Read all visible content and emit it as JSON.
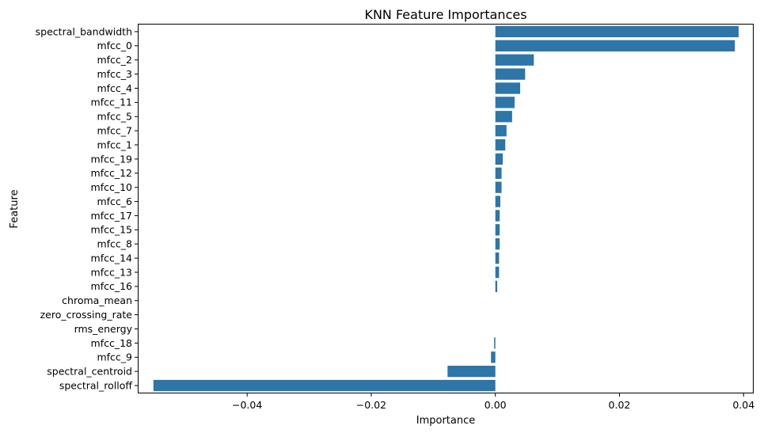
{
  "chart_data": {
    "type": "bar",
    "orientation": "horizontal",
    "title": "KNN Feature Importances",
    "xlabel": "Importance",
    "ylabel": "Feature",
    "xlim": [
      -0.0575,
      0.0415
    ],
    "xticks": [
      -0.04,
      -0.02,
      0.0,
      0.02,
      0.04
    ],
    "xtick_labels": [
      "−0.04",
      "−0.02",
      "0.00",
      "0.02",
      "0.04"
    ],
    "grid": false,
    "legend": "none",
    "bar_color": "#2e75a8",
    "categories": [
      "spectral_bandwidth",
      "mfcc_0",
      "mfcc_2",
      "mfcc_3",
      "mfcc_4",
      "mfcc_11",
      "mfcc_5",
      "mfcc_7",
      "mfcc_1",
      "mfcc_19",
      "mfcc_12",
      "mfcc_10",
      "mfcc_6",
      "mfcc_17",
      "mfcc_15",
      "mfcc_8",
      "mfcc_14",
      "mfcc_13",
      "mfcc_16",
      "chroma_mean",
      "zero_crossing_rate",
      "rms_energy",
      "mfcc_18",
      "mfcc_9",
      "spectral_centroid",
      "spectral_rolloff"
    ],
    "values": [
      0.0392,
      0.0386,
      0.0062,
      0.0048,
      0.004,
      0.0031,
      0.0027,
      0.0018,
      0.0016,
      0.0012,
      0.001,
      0.001,
      0.0008,
      0.0007,
      0.0007,
      0.0007,
      0.0006,
      0.0006,
      0.0003,
      0.0,
      0.0,
      0.0,
      -0.0002,
      -0.0007,
      -0.0077,
      -0.0551
    ]
  }
}
